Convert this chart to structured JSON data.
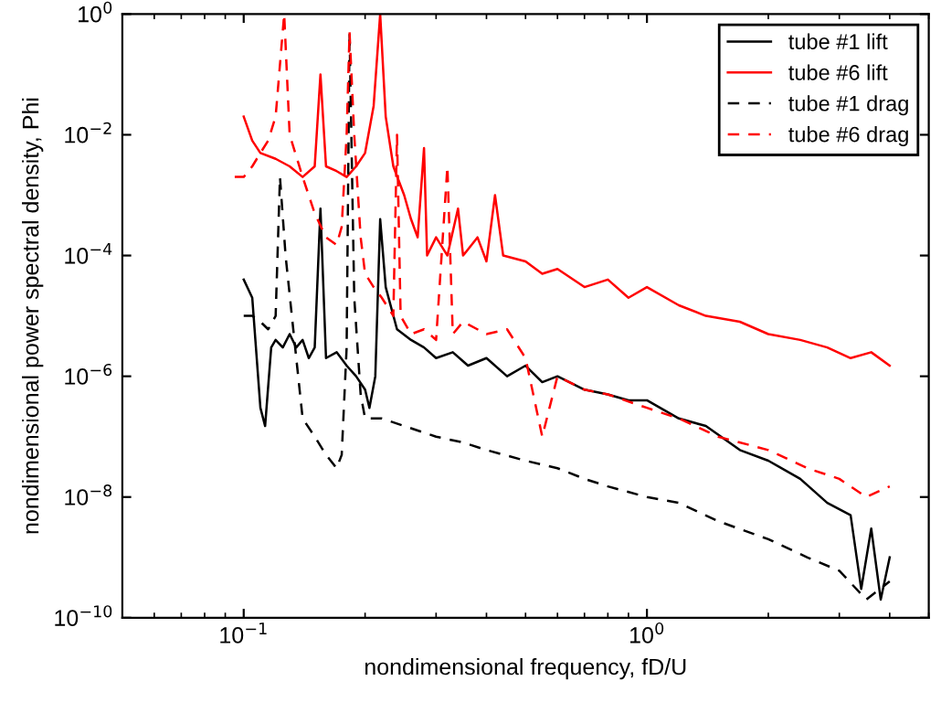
{
  "chart_data": {
    "type": "line",
    "xlabel": "nondimensional frequency, fD/U",
    "ylabel": "nondimensional power spectral density, Phi",
    "log": "xy",
    "grid": false,
    "legend": "top right",
    "xlim": [
      0.05,
      5
    ],
    "ylim": [
      1e-10,
      1
    ],
    "xticks": [
      {
        "value": 0.1,
        "label": "10$^{−1}$"
      },
      {
        "value": 1,
        "label": "10$^{0}$"
      }
    ],
    "yticks": [
      {
        "value": 1e-10,
        "label": "10$^{−10}$"
      },
      {
        "value": 1e-08,
        "label": "10$^{−8}$"
      },
      {
        "value": 1e-06,
        "label": "10$^{−6}$"
      },
      {
        "value": 0.0001,
        "label": "10$^{−4}$"
      },
      {
        "value": 0.01,
        "label": "10$^{−2}$"
      },
      {
        "value": 1,
        "label": "10$^{0}$"
      }
    ],
    "series": [
      {
        "name": "tube #1 lift",
        "color": "#000000",
        "line_style": "solid",
        "x": [
          0.1,
          0.105,
          0.11,
          0.113,
          0.117,
          0.12,
          0.125,
          0.13,
          0.135,
          0.14,
          0.145,
          0.15,
          0.155,
          0.16,
          0.17,
          0.18,
          0.19,
          0.2,
          0.205,
          0.212,
          0.218,
          0.225,
          0.24,
          0.26,
          0.28,
          0.3,
          0.33,
          0.36,
          0.4,
          0.45,
          0.5,
          0.55,
          0.6,
          0.7,
          0.8,
          0.9,
          1.0,
          1.2,
          1.4,
          1.7,
          2.0,
          2.4,
          2.8,
          3.2,
          3.4,
          3.6,
          3.8,
          4.0
        ],
        "values": [
          4e-05,
          2e-05,
          3e-07,
          1.5e-07,
          3e-06,
          4e-06,
          3e-06,
          5e-06,
          3e-06,
          4e-06,
          2e-06,
          3e-06,
          0.0006,
          2e-06,
          2.5e-06,
          1.5e-06,
          1e-06,
          6e-07,
          3e-07,
          1e-06,
          0.0004,
          3e-05,
          6e-06,
          4e-06,
          3e-06,
          2e-06,
          2.5e-06,
          1.5e-06,
          2e-06,
          1e-06,
          1.5e-06,
          8e-07,
          1e-06,
          6e-07,
          5e-07,
          4e-07,
          4e-07,
          2e-07,
          1.5e-07,
          6e-08,
          4e-08,
          2e-08,
          8e-09,
          5e-09,
          3e-10,
          3e-09,
          2e-10,
          1e-09
        ]
      },
      {
        "name": "tube #6 lift",
        "color": "#ff0000",
        "line_style": "solid",
        "x": [
          0.1,
          0.105,
          0.11,
          0.12,
          0.13,
          0.14,
          0.15,
          0.155,
          0.16,
          0.17,
          0.18,
          0.19,
          0.2,
          0.21,
          0.218,
          0.225,
          0.235,
          0.25,
          0.26,
          0.27,
          0.28,
          0.285,
          0.3,
          0.32,
          0.34,
          0.35,
          0.38,
          0.4,
          0.42,
          0.44,
          0.5,
          0.55,
          0.6,
          0.7,
          0.8,
          0.9,
          1.0,
          1.2,
          1.4,
          1.7,
          2.0,
          2.4,
          2.8,
          3.2,
          3.6,
          4.0
        ],
        "values": [
          0.02,
          0.008,
          0.005,
          0.004,
          0.003,
          0.002,
          0.003,
          0.1,
          0.003,
          0.0025,
          0.002,
          0.003,
          0.005,
          0.03,
          1.0,
          0.02,
          0.003,
          0.001,
          0.0004,
          0.0002,
          0.006,
          0.0001,
          0.0002,
          0.0001,
          0.0006,
          0.0001,
          0.0002,
          8e-05,
          0.001,
          0.0001,
          8e-05,
          5e-05,
          6e-05,
          3e-05,
          4e-05,
          2e-05,
          3e-05,
          1.5e-05,
          1e-05,
          8e-06,
          5e-06,
          4e-06,
          3e-06,
          2e-06,
          2.5e-06,
          1.5e-06
        ]
      },
      {
        "name": "tube #1 drag",
        "color": "#000000",
        "line_style": "dashed",
        "x": [
          0.1,
          0.105,
          0.11,
          0.115,
          0.12,
          0.123,
          0.127,
          0.135,
          0.14,
          0.15,
          0.16,
          0.17,
          0.175,
          0.18,
          0.183,
          0.188,
          0.195,
          0.2,
          0.22,
          0.25,
          0.3,
          0.35,
          0.4,
          0.5,
          0.6,
          0.7,
          0.8,
          1.0,
          1.2,
          1.5,
          2.0,
          2.5,
          3.0,
          3.5,
          4.0
        ],
        "values": [
          1e-05,
          1e-05,
          8e-06,
          6e-06,
          1e-05,
          0.002,
          0.0001,
          2e-06,
          2e-07,
          1e-07,
          5e-08,
          3e-08,
          5e-08,
          3e-06,
          0.5,
          2e-05,
          5e-07,
          2e-07,
          2e-07,
          1.5e-07,
          1e-07,
          8e-08,
          6e-08,
          4e-08,
          3e-08,
          2e-08,
          1.5e-08,
          1e-08,
          8e-09,
          4e-09,
          2e-09,
          1e-09,
          6e-10,
          2e-10,
          4e-10
        ]
      },
      {
        "name": "tube #6 drag",
        "color": "#ff0000",
        "line_style": "dashed",
        "x": [
          0.095,
          0.1,
          0.105,
          0.11,
          0.115,
          0.12,
          0.126,
          0.13,
          0.14,
          0.15,
          0.16,
          0.17,
          0.175,
          0.18,
          0.183,
          0.188,
          0.195,
          0.2,
          0.21,
          0.22,
          0.235,
          0.24,
          0.245,
          0.26,
          0.28,
          0.3,
          0.32,
          0.33,
          0.35,
          0.4,
          0.45,
          0.5,
          0.55,
          0.6,
          0.7,
          0.8,
          1.0,
          1.2,
          1.5,
          2.0,
          2.5,
          3.0,
          3.5,
          4.0
        ],
        "values": [
          0.002,
          0.002,
          0.003,
          0.005,
          0.008,
          0.02,
          1.0,
          0.01,
          0.002,
          0.0005,
          0.0002,
          0.00015,
          0.0003,
          0.01,
          0.5,
          0.01,
          0.0002,
          5e-05,
          3e-05,
          2e-05,
          1e-05,
          0.01,
          1e-05,
          5e-06,
          6e-06,
          4e-06,
          0.003,
          5e-06,
          8e-06,
          5e-06,
          6e-06,
          2e-06,
          1e-07,
          1e-06,
          6e-07,
          5e-07,
          3e-07,
          2e-07,
          1e-07,
          6e-08,
          3e-08,
          2e-08,
          1e-08,
          1.5e-08
        ]
      }
    ]
  }
}
